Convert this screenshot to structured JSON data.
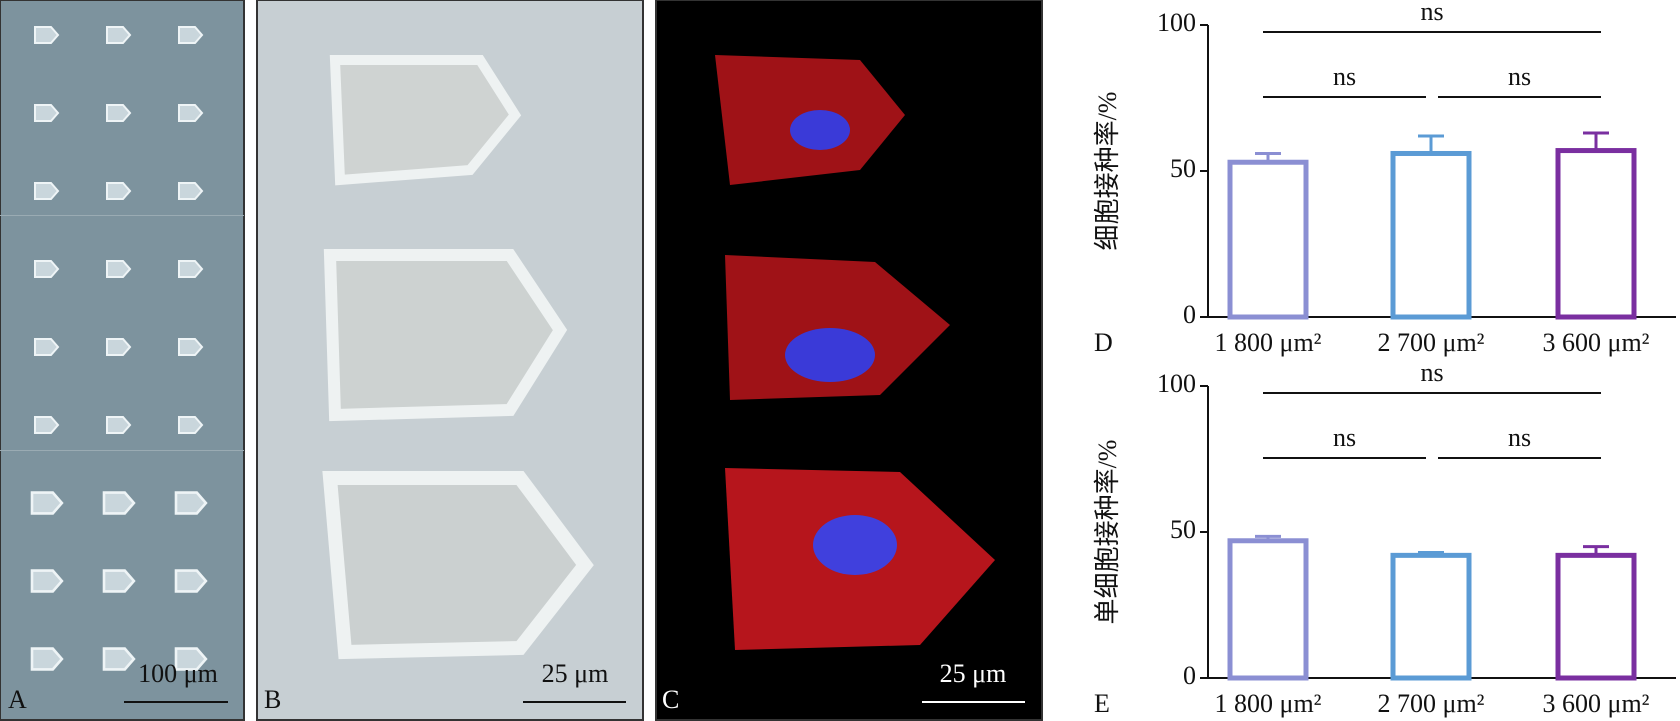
{
  "panels": [
    {
      "label": "A",
      "scale_bar": "100 μm"
    },
    {
      "label": "B",
      "scale_bar": "25 μm"
    },
    {
      "label": "C",
      "scale_bar": "25 μm"
    }
  ],
  "chart_data": [
    {
      "type": "bar",
      "panel": "D",
      "y_label": "细胞接种率/%",
      "categories": [
        "1 800 μm²",
        "2 700 μm²",
        "3 600 μm²"
      ],
      "values": [
        53,
        56,
        57
      ],
      "errors": [
        3,
        6,
        6
      ],
      "colors": [
        "#8b8fd3",
        "#5b9bd5",
        "#7a2fa0"
      ],
      "ylim": [
        0,
        100
      ],
      "yticks": [
        0,
        50,
        100
      ],
      "comparisons": [
        {
          "text": "ns",
          "between": [
            "1 800 μm²",
            "3 600 μm²"
          ]
        },
        {
          "text": "ns",
          "between": [
            "1 800 μm²",
            "2 700 μm²"
          ]
        },
        {
          "text": "ns",
          "between": [
            "2 700 μm²",
            "3 600 μm²"
          ]
        }
      ]
    },
    {
      "type": "bar",
      "panel": "E",
      "y_label": "单细胞接种率/%",
      "categories": [
        "1 800 μm²",
        "2 700 μm²",
        "3 600 μm²"
      ],
      "values": [
        47,
        42,
        42
      ],
      "errors": [
        1.5,
        1,
        3
      ],
      "colors": [
        "#8b8fd3",
        "#5b9bd5",
        "#7a2fa0"
      ],
      "ylim": [
        0,
        100
      ],
      "yticks": [
        0,
        50,
        100
      ],
      "comparisons": [
        {
          "text": "ns",
          "between": [
            "1 800 μm²",
            "3 600 μm²"
          ]
        },
        {
          "text": "ns",
          "between": [
            "1 800 μm²",
            "2 700 μm²"
          ]
        },
        {
          "text": "ns",
          "between": [
            "2 700 μm²",
            "3 600 μm²"
          ]
        }
      ]
    }
  ]
}
